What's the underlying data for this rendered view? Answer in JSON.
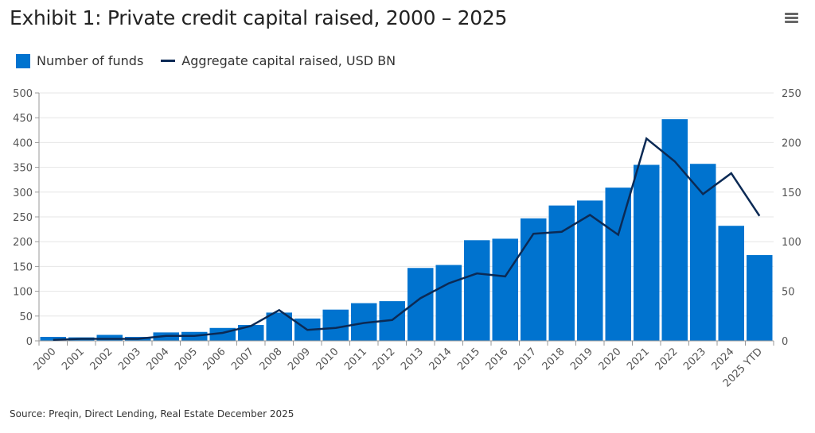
{
  "chart_data": {
    "type": "bar+line",
    "title": "Exhibit 1: Private credit capital raised, 2000 – 2025",
    "source": "Source: Preqin, Direct Lending, Real Estate December 2025",
    "categories": [
      "2000",
      "2001",
      "2002",
      "2003",
      "2004",
      "2005",
      "2006",
      "2007",
      "2008",
      "2009",
      "2010",
      "2011",
      "2012",
      "2013",
      "2014",
      "2015",
      "2016",
      "2017",
      "2018",
      "2019",
      "2020",
      "2021",
      "2022",
      "2023",
      "2024",
      "2025 YTD"
    ],
    "series": [
      {
        "name": "Number of funds",
        "type": "bar",
        "axis": "left",
        "color": "#0073cf",
        "values": [
          8,
          7,
          12,
          8,
          17,
          18,
          26,
          32,
          57,
          45,
          63,
          76,
          80,
          147,
          153,
          203,
          206,
          247,
          273,
          283,
          309,
          355,
          447,
          357,
          232,
          173
        ]
      },
      {
        "name": "Aggregate capital raised, USD BN",
        "type": "line",
        "axis": "right",
        "color": "#0b2a55",
        "values": [
          1,
          2,
          2,
          2,
          5,
          5,
          8,
          15,
          31,
          11,
          13,
          18,
          21,
          43,
          58,
          68,
          65,
          108,
          110,
          127,
          107,
          204,
          181,
          148,
          169,
          126
        ]
      }
    ],
    "left_axis": {
      "ylim": [
        0,
        500
      ],
      "ticks": [
        "0",
        "50",
        "100",
        "150",
        "200",
        "250",
        "300",
        "350",
        "400",
        "450",
        "500"
      ]
    },
    "right_axis": {
      "ylim": [
        0,
        250
      ],
      "ticks": [
        "0",
        "50",
        "100",
        "150",
        "200",
        "250"
      ]
    },
    "grid": true,
    "legend": "top-left"
  }
}
